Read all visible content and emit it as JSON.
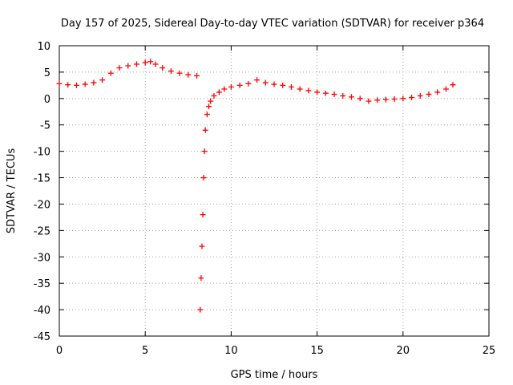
{
  "chart_data": {
    "type": "scatter",
    "title": "Day 157 of 2025, Sidereal Day-to-day VTEC variation (SDTVAR) for receiver p364",
    "xlabel": "GPS time / hours",
    "ylabel": "SDTVAR / TECUs",
    "xlim": [
      0,
      25
    ],
    "ylim": [
      -45,
      10
    ],
    "xticks": [
      0,
      5,
      10,
      15,
      20,
      25
    ],
    "yticks": [
      10,
      5,
      0,
      -5,
      -10,
      -15,
      -20,
      -25,
      -30,
      -35,
      -40,
      -45
    ],
    "grid": true,
    "marker": "+",
    "color": "#ff0000",
    "series": [
      {
        "name": "SDTVAR",
        "x": [
          0.0,
          0.5,
          1.0,
          1.5,
          2.0,
          2.5,
          3.0,
          3.5,
          4.0,
          4.5,
          5.0,
          5.3,
          5.6,
          6.0,
          6.5,
          7.0,
          7.5,
          8.0,
          8.2,
          8.25,
          8.3,
          8.35,
          8.4,
          8.45,
          8.5,
          8.6,
          8.7,
          8.8,
          9.0,
          9.3,
          9.6,
          10.0,
          10.5,
          11.0,
          11.5,
          12.0,
          12.5,
          13.0,
          13.5,
          14.0,
          14.5,
          15.0,
          15.5,
          16.0,
          16.5,
          17.0,
          17.5,
          18.0,
          18.5,
          19.0,
          19.5,
          20.0,
          20.5,
          21.0,
          21.5,
          22.0,
          22.5,
          22.9
        ],
        "y": [
          2.8,
          2.6,
          2.5,
          2.7,
          3.0,
          3.5,
          4.8,
          5.8,
          6.2,
          6.5,
          6.8,
          7.0,
          6.5,
          5.8,
          5.2,
          4.8,
          4.5,
          4.3,
          -40.0,
          -34.0,
          -28.0,
          -22.0,
          -15.0,
          -10.0,
          -6.0,
          -3.0,
          -1.5,
          -0.5,
          0.5,
          1.2,
          1.8,
          2.2,
          2.5,
          2.8,
          3.5,
          3.0,
          2.7,
          2.5,
          2.2,
          1.8,
          1.5,
          1.2,
          1.0,
          0.8,
          0.5,
          0.3,
          0.0,
          -0.5,
          -0.3,
          -0.2,
          -0.1,
          0.0,
          0.2,
          0.5,
          0.8,
          1.2,
          1.8,
          2.6
        ]
      }
    ]
  }
}
